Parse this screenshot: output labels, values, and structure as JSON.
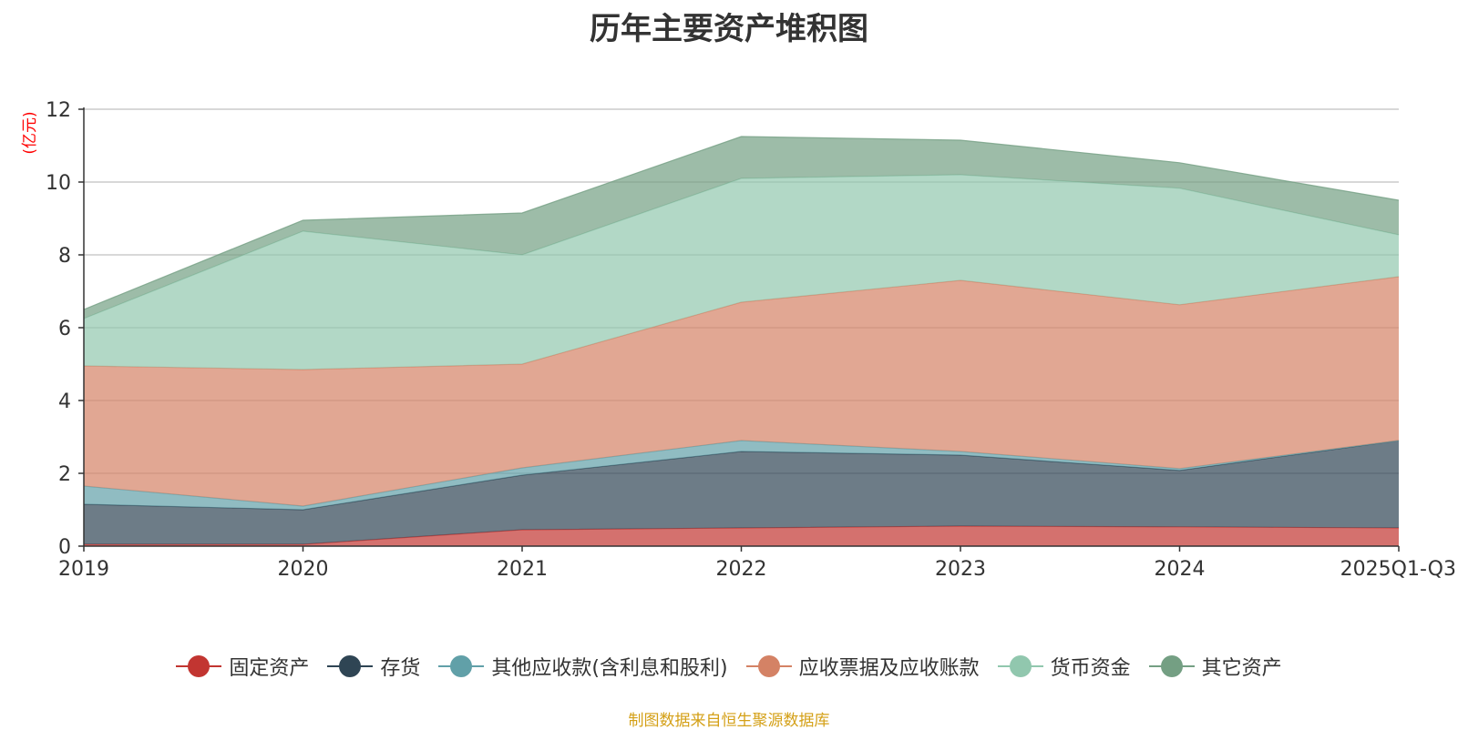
{
  "colors": {
    "fixed_assets": "#c23531",
    "inventory": "#2f4554",
    "other_receivables": "#61a0a8",
    "receivables": "#d48265",
    "cash": "#91c7ae",
    "other_assets": "#749f83",
    "source_note": "#d4a017",
    "unit_label": "#ff0000"
  },
  "chart_data": {
    "type": "area",
    "stacked": true,
    "title": "历年主要资产堆积图",
    "ylabel": "(亿元)",
    "xlabel": "",
    "ylim": [
      0,
      12
    ],
    "yticks": [
      0,
      2,
      4,
      6,
      8,
      10,
      12
    ],
    "grid": true,
    "legend_position": "bottom",
    "categories": [
      "2019",
      "2020",
      "2021",
      "2022",
      "2023",
      "2024",
      "2025Q1-Q3"
    ],
    "series": [
      {
        "name": "固定资产",
        "color_key": "fixed_assets",
        "values": [
          0.05,
          0.05,
          0.45,
          0.5,
          0.55,
          0.53,
          0.5
        ]
      },
      {
        "name": "存货",
        "color_key": "inventory",
        "values": [
          1.1,
          0.95,
          1.5,
          2.1,
          1.95,
          1.55,
          2.4
        ]
      },
      {
        "name": "其他应收款(含利息和股利)",
        "color_key": "other_receivables",
        "values": [
          0.5,
          0.1,
          0.2,
          0.3,
          0.1,
          0.05,
          0.0
        ]
      },
      {
        "name": "应收票据及应收账款",
        "color_key": "receivables",
        "values": [
          3.3,
          3.75,
          2.85,
          3.8,
          4.7,
          4.5,
          4.5
        ]
      },
      {
        "name": "货币资金",
        "color_key": "cash",
        "values": [
          1.3,
          3.8,
          3.0,
          3.4,
          2.9,
          3.2,
          1.15
        ]
      },
      {
        "name": "其它资产",
        "color_key": "other_assets",
        "values": [
          0.25,
          0.3,
          1.15,
          1.15,
          0.95,
          0.7,
          0.95
        ]
      }
    ]
  },
  "source_note": "制图数据来自恒生聚源数据库"
}
